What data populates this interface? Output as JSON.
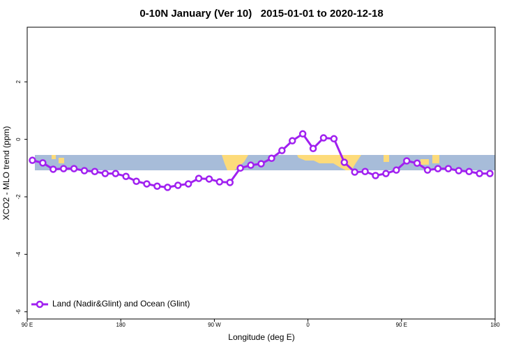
{
  "chart_data": {
    "type": "line",
    "title": "0-10N January (Ver 10)   2015-01-01 to 2020-12-18",
    "x_label": "Longitude (deg E)",
    "y_label": "XCO2 - MLO trend (ppm)",
    "xlim": [
      90,
      540
    ],
    "xticks": [
      {
        "value": 90,
        "label": "90 E"
      },
      180,
      {
        "value": 270,
        "label": "90 W"
      },
      {
        "value": 360,
        "label": "0"
      },
      {
        "value": 450,
        "label": "90 E"
      },
      {
        "value": 540,
        "label": "180"
      }
    ],
    "ylim": [
      -6.25,
      3.9
    ],
    "yticks": [
      -6,
      -4,
      -2,
      0,
      2
    ],
    "legend": "bottom-left",
    "x": [
      95,
      105,
      115,
      125,
      135,
      145,
      155,
      165,
      175,
      185,
      195,
      205,
      215,
      225,
      235,
      245,
      255,
      265,
      275,
      285,
      295,
      305,
      315,
      325,
      335,
      345,
      355,
      365,
      375,
      385,
      395,
      405,
      415,
      425,
      435,
      445,
      455,
      465,
      475,
      485,
      495,
      505,
      515,
      525,
      535
    ],
    "series": [
      {
        "name": "Land (Nadir&Glint) and Ocean (Glint)",
        "color": "#a020f0",
        "values": [
          -0.73,
          -0.82,
          -1.04,
          -1.02,
          -1.02,
          -1.09,
          -1.12,
          -1.19,
          -1.19,
          -1.29,
          -1.46,
          -1.55,
          -1.63,
          -1.67,
          -1.6,
          -1.55,
          -1.36,
          -1.38,
          -1.48,
          -1.5,
          -1.0,
          -0.9,
          -0.85,
          -0.66,
          -0.39,
          -0.05,
          0.19,
          -0.32,
          0.05,
          0.02,
          -0.8,
          -1.14,
          -1.12,
          -1.26,
          -1.19,
          -1.07,
          -0.75,
          -0.83,
          -1.07,
          -1.02,
          -1.02,
          -1.09,
          -1.12,
          -1.19,
          -1.19
        ]
      }
    ]
  }
}
